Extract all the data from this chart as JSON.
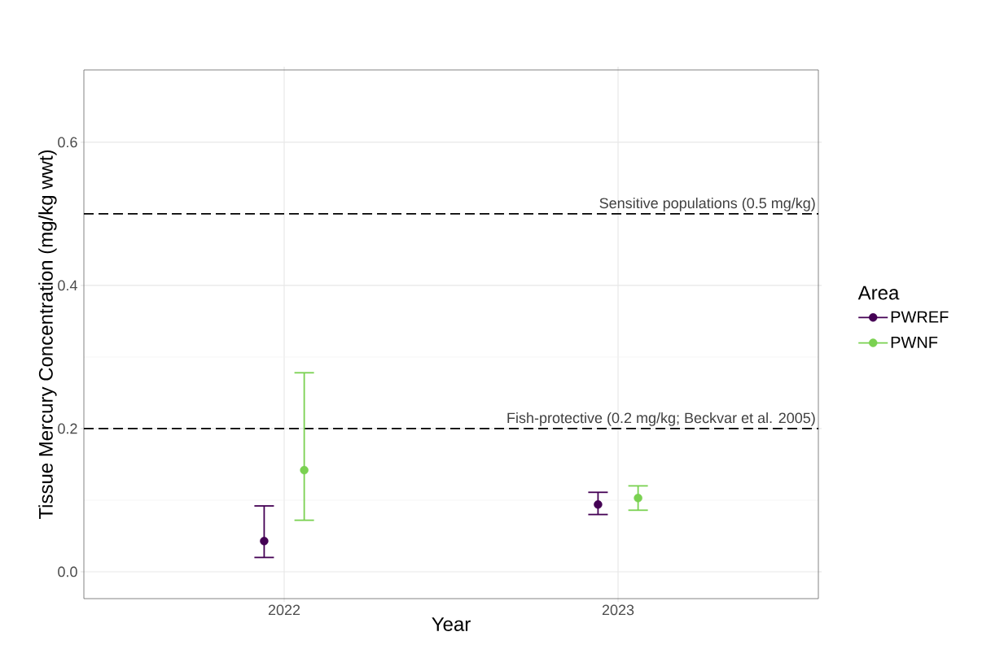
{
  "chart_data": {
    "type": "scatter",
    "xlabel": "Year",
    "ylabel": "Tissue Mercury Concentration (mg/kg wwt)",
    "legend_title": "Area",
    "categories": [
      "2022",
      "2023"
    ],
    "series": [
      {
        "name": "PWREF",
        "color": "#440154",
        "values": [
          0.043,
          0.094
        ],
        "errors": [
          [
            0.02,
            0.092
          ],
          [
            0.08,
            0.111
          ]
        ]
      },
      {
        "name": "PWNF",
        "color": "#7ad151",
        "values": [
          0.142,
          0.103
        ],
        "errors": [
          [
            0.072,
            0.278
          ],
          [
            0.086,
            0.12
          ]
        ]
      }
    ],
    "ylim": [
      -0.0375,
      0.701
    ],
    "yticks": [
      {
        "value": 0,
        "label": "0.0"
      },
      {
        "value": 0.2,
        "label": "0.2"
      },
      {
        "value": 0.4,
        "label": "0.4"
      },
      {
        "value": 0.6,
        "label": "0.6"
      }
    ],
    "ref_lines": [
      {
        "axis": "y",
        "value": 0.5,
        "label": "Sensitive populations (0.5 mg/kg)",
        "line_style": "dashed",
        "color": "#000000"
      },
      {
        "axis": "y",
        "value": 0.2,
        "label": "Fish-protective (0.2 mg/kg; Beckvar et al. 2005)",
        "line_style": "dashed",
        "color": "#000000"
      }
    ],
    "grid": true,
    "legend": "right",
    "marker": "circle"
  }
}
